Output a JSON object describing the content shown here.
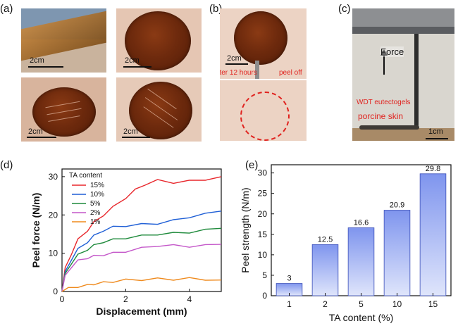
{
  "panels": {
    "a": "(a)",
    "b": "(b)",
    "c": "(c)",
    "d": "(d)",
    "e": "(e)"
  },
  "panel_a": {
    "scale": [
      "2cm",
      "2cm",
      "2cm",
      "2cm"
    ]
  },
  "panel_b": {
    "scale": "2cm",
    "after_text": "After 12 hours",
    "peel_text": "peel off"
  },
  "panel_c": {
    "force": "Force",
    "eutectogel": "WDT eutectogels",
    "skin": "porcine skin",
    "scale": "1cm"
  },
  "chart_data": [
    {
      "type": "line",
      "xlabel": "Displacement (mm)",
      "ylabel": "Peel force (N/m)",
      "xlim": [
        0,
        5
      ],
      "ylim": [
        0,
        32
      ],
      "xticks": [
        0,
        2,
        4
      ],
      "yticks": [
        0,
        10,
        20,
        30
      ],
      "legend_title": "TA content",
      "legend_position": "top-left",
      "series": [
        {
          "name": "15%",
          "color": "#e8262b",
          "x": [
            0,
            0.1,
            0.3,
            0.5,
            0.8,
            1,
            1.3,
            1.6,
            2,
            2.3,
            2.6,
            3,
            3.5,
            4,
            4.5,
            5
          ],
          "y": [
            0,
            6,
            10,
            13.5,
            16,
            18,
            20,
            22,
            24.5,
            26.5,
            28,
            29,
            28.5,
            28.8,
            29.3,
            30
          ]
        },
        {
          "name": "10%",
          "color": "#1f5fd6",
          "x": [
            0,
            0.1,
            0.3,
            0.5,
            0.8,
            1,
            1.3,
            1.6,
            2,
            2.5,
            3,
            3.5,
            4,
            4.5,
            5
          ],
          "y": [
            0,
            5,
            8.5,
            11,
            13,
            14.5,
            16,
            16.8,
            17.2,
            17.5,
            17.8,
            18.5,
            19.5,
            20.2,
            21
          ]
        },
        {
          "name": "5%",
          "color": "#1e8a3b",
          "x": [
            0,
            0.1,
            0.3,
            0.5,
            0.8,
            1,
            1.3,
            1.6,
            2,
            2.5,
            3,
            3.5,
            4,
            4.5,
            5
          ],
          "y": [
            0,
            4.5,
            7.5,
            9.5,
            11,
            12,
            13,
            13.5,
            14,
            14.5,
            15,
            15.2,
            15.5,
            16,
            16.5
          ]
        },
        {
          "name": "2%",
          "color": "#c457c9",
          "x": [
            0,
            0.1,
            0.3,
            0.5,
            0.8,
            1,
            1.3,
            1.6,
            2,
            2.5,
            3,
            3.5,
            4,
            4.5,
            5
          ],
          "y": [
            0,
            4,
            6.5,
            8,
            8.8,
            9.2,
            9.6,
            10,
            10.5,
            11.3,
            12,
            12,
            11.8,
            12,
            12.3
          ]
        },
        {
          "name": "1%",
          "color": "#ef8a1d",
          "x": [
            0,
            0.2,
            0.5,
            0.8,
            1,
            1.3,
            1.6,
            2,
            2.5,
            3,
            3.5,
            4,
            4.5,
            5
          ],
          "y": [
            0,
            0.8,
            1.3,
            1.6,
            2.0,
            2.3,
            2.6,
            3,
            3.1,
            3.3,
            3.2,
            3.4,
            3.2,
            3.0
          ]
        }
      ]
    },
    {
      "type": "bar",
      "xlabel": "TA content (%)",
      "ylabel": "Peel strength (N/m)",
      "ylim": [
        0,
        32
      ],
      "yticks": [
        0,
        5,
        10,
        15,
        20,
        25,
        30
      ],
      "categories": [
        "1",
        "2",
        "5",
        "10",
        "15"
      ],
      "values": [
        3,
        12.5,
        16.6,
        20.9,
        29.8
      ],
      "labels": [
        "3",
        "12.5",
        "16.6",
        "20.9",
        "29.8"
      ],
      "bar_color": "#7f95ee"
    }
  ]
}
